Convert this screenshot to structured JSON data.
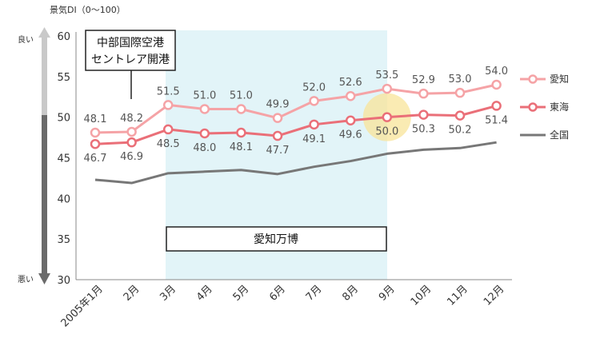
{
  "chart_data": {
    "type": "line",
    "title": "",
    "unit_label": "景気DI（0～100）",
    "good_label": "良い",
    "bad_label": "悪い",
    "categories": [
      "2005年1月",
      "2月",
      "3月",
      "4月",
      "5月",
      "6月",
      "7月",
      "8月",
      "9月",
      "10月",
      "11月",
      "12月"
    ],
    "ylim": [
      30,
      60
    ],
    "yticks": [
      30,
      35,
      40,
      45,
      50,
      55,
      60
    ],
    "series": [
      {
        "name": "愛知",
        "color": "#f5a3a6",
        "marker": true,
        "values": [
          48.1,
          48.2,
          51.5,
          51.0,
          51.0,
          49.9,
          52.0,
          52.6,
          53.5,
          52.9,
          53.0,
          54.0
        ],
        "labels": [
          "48.1",
          "48.2",
          "51.5",
          "51.0",
          "51.0",
          "49.9",
          "52.0",
          "52.6",
          "53.5",
          "52.9",
          "53.0",
          "54.0"
        ]
      },
      {
        "name": "東海",
        "color": "#ea6f78",
        "marker": true,
        "values": [
          46.7,
          46.9,
          48.5,
          48.0,
          48.1,
          47.7,
          49.1,
          49.6,
          50.0,
          50.3,
          50.2,
          51.4
        ],
        "labels": [
          "46.7",
          "46.9",
          "48.5",
          "48.0",
          "48.1",
          "47.7",
          "49.1",
          "49.6",
          "50.0",
          "50.3",
          "50.2",
          "51.4"
        ]
      },
      {
        "name": "全国",
        "color": "#777777",
        "marker": false,
        "values": [
          42.3,
          41.9,
          43.1,
          43.3,
          43.5,
          43.0,
          43.9,
          44.6,
          45.5,
          46.0,
          46.2,
          46.9
        ],
        "labels": []
      }
    ],
    "annotations": {
      "airport": {
        "lines": [
          "中部国際空港",
          "セントレア開港"
        ],
        "category": "2月"
      },
      "expo": {
        "text": "愛知万博",
        "from": "3月",
        "to": "9月"
      },
      "highlight": {
        "category": "9月",
        "value": 50.0
      }
    },
    "grid": false,
    "legend_position": "right"
  }
}
